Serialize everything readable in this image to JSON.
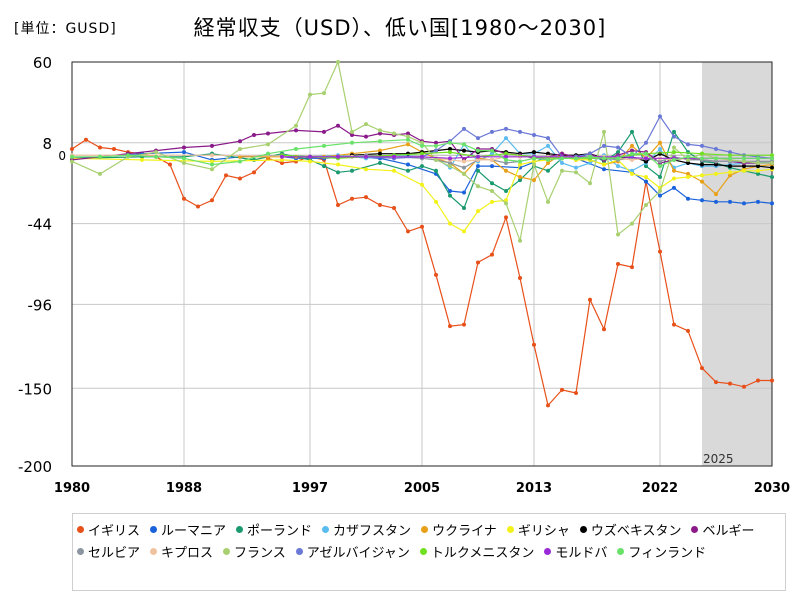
{
  "unit_label": "[単位：GUSD]",
  "chart_data": {
    "type": "line",
    "title": "経常収支（USD）、低い国[1980～2030]",
    "xlabel": "",
    "ylabel": "",
    "xlim": [
      1980,
      2030
    ],
    "ylim": [
      -200,
      60
    ],
    "x_ticks": [
      1980,
      1988,
      1997,
      2005,
      2013,
      2022,
      2030
    ],
    "y_ticks": [
      60,
      8,
      -44,
      -96,
      -150,
      -200
    ],
    "zero_label": "0",
    "forecast_region": {
      "from": 2025,
      "to": 2030,
      "label": "2025",
      "color": "#d9d9d9"
    },
    "legend_position": "bottom",
    "grid": true,
    "series": [
      {
        "name": "イギリス",
        "color": "#e8501a",
        "x": [
          1980,
          1981,
          1982,
          1983,
          1984,
          1985,
          1986,
          1987,
          1988,
          1989,
          1990,
          1991,
          1992,
          1993,
          1994,
          1995,
          1996,
          1997,
          1998,
          1999,
          2000,
          2001,
          2002,
          2003,
          2004,
          2005,
          2006,
          2007,
          2008,
          2009,
          2010,
          2011,
          2012,
          2013,
          2014,
          2015,
          2016,
          2017,
          2018,
          2019,
          2020,
          2021,
          2022,
          2023,
          2024,
          2025,
          2026,
          2027,
          2028,
          2029,
          2030
        ],
        "y": [
          4,
          10,
          5,
          4,
          2,
          1,
          -1,
          -6,
          -28,
          -33,
          -29,
          -13,
          -15,
          -11,
          -2,
          -5,
          -4,
          -1,
          -3,
          -32,
          -28,
          -27,
          -32,
          -34,
          -49,
          -46,
          -77,
          -110,
          -109,
          -69,
          -64,
          -40,
          -79,
          -122,
          -161,
          -151,
          -153,
          -93,
          -112,
          -70,
          -72,
          -17,
          -62,
          -109,
          -113,
          -137,
          -146,
          -147,
          -149,
          -145,
          -145
        ]
      },
      {
        "name": "ルーマニア",
        "color": "#1a62dc",
        "x": [
          1980,
          1982,
          1985,
          1988,
          1990,
          1992,
          1994,
          1996,
          1998,
          2000,
          2002,
          2004,
          2006,
          2007,
          2008,
          2009,
          2010,
          2012,
          2014,
          2016,
          2018,
          2020,
          2021,
          2022,
          2023,
          2024,
          2025,
          2026,
          2027,
          2028,
          2029,
          2030
        ],
        "y": [
          -2,
          -1,
          1,
          2,
          -3,
          -1,
          0,
          -2,
          -2,
          -1,
          -2,
          -6,
          -12,
          -23,
          -24,
          -7,
          -7,
          -8,
          -1,
          -2,
          -9,
          -11,
          -17,
          -26,
          -21,
          -28,
          -29,
          -30,
          -30,
          -31,
          -30,
          -31
        ]
      },
      {
        "name": "ポーランド",
        "color": "#1a9a6e",
        "x": [
          1980,
          1985,
          1988,
          1990,
          1993,
          1995,
          1997,
          1998,
          1999,
          2000,
          2002,
          2004,
          2005,
          2006,
          2007,
          2008,
          2009,
          2010,
          2011,
          2012,
          2013,
          2014,
          2015,
          2016,
          2017,
          2018,
          2019,
          2020,
          2021,
          2022,
          2023,
          2024,
          2025,
          2026,
          2027,
          2028,
          2029,
          2030
        ],
        "y": [
          -2,
          -1,
          -1,
          1,
          -3,
          1,
          -3,
          -7,
          -11,
          -10,
          -5,
          -10,
          -7,
          -10,
          -26,
          -34,
          -10,
          -18,
          -23,
          -16,
          -7,
          -10,
          -2,
          -2,
          1,
          -4,
          2,
          15,
          -7,
          -14,
          15,
          2,
          -4,
          -5,
          -8,
          -10,
          -12,
          -14
        ]
      },
      {
        "name": "カザフスタン",
        "color": "#5bbcf0",
        "x": [
          1995,
          1997,
          1999,
          2001,
          2003,
          2005,
          2006,
          2007,
          2008,
          2009,
          2010,
          2011,
          2012,
          2013,
          2014,
          2015,
          2016,
          2017,
          2018,
          2019,
          2020,
          2021,
          2022,
          2023,
          2024,
          2025,
          2026,
          2027,
          2028,
          2029,
          2030
        ],
        "y": [
          -1,
          -1,
          0,
          -2,
          0,
          -1,
          -2,
          -8,
          7,
          -4,
          1,
          11,
          1,
          1,
          6,
          -5,
          -8,
          -5,
          0,
          -7,
          -10,
          -5,
          4,
          -8,
          -5,
          -7,
          -7,
          -6,
          -5,
          -5,
          -4
        ]
      },
      {
        "name": "ウクライナ",
        "color": "#e8a017",
        "x": [
          1992,
          1994,
          1996,
          1998,
          2000,
          2002,
          2004,
          2005,
          2006,
          2007,
          2008,
          2009,
          2010,
          2011,
          2012,
          2013,
          2014,
          2015,
          2016,
          2017,
          2018,
          2019,
          2020,
          2021,
          2022,
          2023,
          2024,
          2025,
          2026,
          2027,
          2028,
          2029,
          2030
        ],
        "y": [
          -1,
          -1,
          -1,
          -1,
          1,
          3,
          7,
          2,
          -2,
          -5,
          -12,
          -2,
          -3,
          -10,
          -14,
          -16,
          -5,
          1,
          -3,
          -3,
          -6,
          -4,
          6,
          -2,
          8,
          -10,
          -12,
          -17,
          -25,
          -13,
          -9,
          -7,
          -6
        ]
      },
      {
        "name": "ギリシャ",
        "color": "#f2f21a",
        "x": [
          1980,
          1985,
          1990,
          1995,
          1997,
          1999,
          2001,
          2003,
          2005,
          2006,
          2007,
          2008,
          2009,
          2010,
          2011,
          2012,
          2013,
          2014,
          2015,
          2016,
          2017,
          2018,
          2019,
          2020,
          2021,
          2022,
          2023,
          2024,
          2025,
          2026,
          2027,
          2028,
          2029,
          2030
        ],
        "y": [
          -2,
          -3,
          -4,
          -3,
          -4,
          -6,
          -9,
          -10,
          -19,
          -30,
          -44,
          -49,
          -36,
          -30,
          -29,
          -6,
          -4,
          -3,
          -1,
          -3,
          -3,
          -6,
          -3,
          -12,
          -14,
          -21,
          -15,
          -14,
          -13,
          -12,
          -11,
          -10,
          -10,
          -9
        ]
      },
      {
        "name": "ウズベキスタン",
        "color": "#000000",
        "x": [
          2000,
          2002,
          2004,
          2005,
          2006,
          2007,
          2008,
          2009,
          2010,
          2011,
          2012,
          2013,
          2014,
          2015,
          2016,
          2017,
          2018,
          2019,
          2020,
          2021,
          2022,
          2023,
          2024,
          2025,
          2026,
          2027,
          2028,
          2029,
          2030
        ],
        "y": [
          0,
          1,
          1,
          2,
          3,
          4,
          3,
          2,
          3,
          2,
          1,
          2,
          1,
          0,
          0,
          1,
          -2,
          -2,
          -1,
          -4,
          1,
          -3,
          -5,
          -6,
          -6,
          -7,
          -7,
          -7,
          -8
        ]
      },
      {
        "name": "ベルギー",
        "color": "#8a1a8a",
        "x": [
          1980,
          1982,
          1984,
          1986,
          1988,
          1990,
          1992,
          1993,
          1994,
          1996,
          1998,
          1999,
          2000,
          2001,
          2002,
          2003,
          2004,
          2005,
          2006,
          2007,
          2008,
          2009,
          2010,
          2011,
          2012,
          2013,
          2014,
          2015,
          2016,
          2017,
          2018,
          2019,
          2020,
          2021,
          2022,
          2023,
          2024,
          2025,
          2026,
          2027,
          2028,
          2029,
          2030
        ],
        "y": [
          -3,
          -1,
          1,
          3,
          5,
          6,
          9,
          13,
          14,
          16,
          15,
          19,
          13,
          12,
          14,
          13,
          14,
          9,
          8,
          9,
          -3,
          4,
          4,
          1,
          0,
          -2,
          -1,
          1,
          -1,
          1,
          -3,
          0,
          3,
          2,
          -5,
          -3,
          -2,
          -3,
          -4,
          -4,
          -5,
          -5,
          -5
        ]
      },
      {
        "name": "セルビア",
        "color": "#8c96a0",
        "x": [
          1997,
          1999,
          2001,
          2003,
          2005,
          2006,
          2007,
          2008,
          2009,
          2010,
          2011,
          2012,
          2013,
          2014,
          2015,
          2016,
          2017,
          2018,
          2019,
          2020,
          2021,
          2022,
          2023,
          2024,
          2025,
          2026,
          2027,
          2028,
          2029,
          2030
        ],
        "y": [
          -1,
          -1,
          0,
          -1,
          -2,
          -3,
          -5,
          -8,
          -3,
          -3,
          -5,
          -4,
          -2,
          -2,
          -1,
          -1,
          -2,
          -2,
          -3,
          -2,
          -2,
          -4,
          -1,
          -3,
          -3,
          -4,
          -4,
          -4,
          -4,
          -4
        ]
      },
      {
        "name": "キプロス",
        "color": "#f0c3a0",
        "x": [
          1980,
          1990,
          2000,
          2005,
          2006,
          2007,
          2008,
          2009,
          2010,
          2011,
          2012,
          2013,
          2014,
          2015,
          2016,
          2017,
          2018,
          2019,
          2020,
          2021,
          2022,
          2023,
          2024,
          2025,
          2026,
          2027,
          2028,
          2029,
          2030
        ],
        "y": [
          0,
          0,
          -1,
          -1,
          -2,
          -3,
          -4,
          -3,
          -3,
          -1,
          -1,
          -1,
          -1,
          -1,
          -1,
          -1,
          -1,
          -2,
          -3,
          -2,
          -2,
          -3,
          -2,
          -2,
          -2,
          -2,
          -2,
          -2,
          -2
        ]
      },
      {
        "name": "フランス",
        "color": "#a8d070",
        "x": [
          1980,
          1982,
          1984,
          1986,
          1988,
          1990,
          1992,
          1994,
          1996,
          1997,
          1998,
          1999,
          2000,
          2001,
          2002,
          2003,
          2004,
          2005,
          2006,
          2007,
          2008,
          2009,
          2010,
          2011,
          2012,
          2013,
          2014,
          2015,
          2016,
          2017,
          2018,
          2019,
          2020,
          2021,
          2022,
          2023,
          2024,
          2025,
          2026,
          2027,
          2028,
          2029,
          2030
        ],
        "y": [
          -4,
          -12,
          -1,
          2,
          -5,
          -9,
          4,
          7,
          19,
          39,
          40,
          60,
          15,
          20,
          16,
          14,
          12,
          8,
          -3,
          -7,
          -12,
          -20,
          -23,
          -31,
          -55,
          -6,
          -30,
          -10,
          -11,
          -18,
          15,
          -51,
          -44,
          -32,
          -23,
          5,
          -3,
          1,
          -2,
          -3,
          -4,
          -5,
          -5
        ]
      },
      {
        "name": "アゼルバイジャン",
        "color": "#6a78d6",
        "x": [
          1995,
          1997,
          1999,
          2001,
          2003,
          2005,
          2006,
          2007,
          2008,
          2009,
          2010,
          2011,
          2012,
          2013,
          2014,
          2015,
          2016,
          2017,
          2018,
          2019,
          2020,
          2021,
          2022,
          2023,
          2024,
          2025,
          2026,
          2027,
          2028,
          2029,
          2030
        ],
        "y": [
          0,
          -1,
          -1,
          -1,
          -2,
          -1,
          3,
          9,
          17,
          11,
          15,
          17,
          15,
          13,
          11,
          -1,
          -1,
          1,
          6,
          5,
          -1,
          8,
          25,
          12,
          7,
          6,
          4,
          2,
          0,
          -1,
          -2
        ]
      },
      {
        "name": "トルクメニスタン",
        "color": "#70e020",
        "x": [
          1995,
          1997,
          1999,
          2001,
          2003,
          2005,
          2007,
          2009,
          2011,
          2013,
          2015,
          2017,
          2019,
          2021,
          2023,
          2025,
          2027,
          2030
        ],
        "y": [
          0,
          -1,
          -2,
          -1,
          0,
          1,
          2,
          -1,
          1,
          -1,
          -2,
          -2,
          -1,
          1,
          2,
          1,
          0,
          0
        ]
      },
      {
        "name": "モルドバ",
        "color": "#9a2ad8",
        "x": [
          1995,
          1997,
          1999,
          2001,
          2003,
          2005,
          2007,
          2009,
          2011,
          2013,
          2015,
          2017,
          2019,
          2021,
          2023,
          2025,
          2027,
          2030
        ],
        "y": [
          -1,
          -1,
          -1,
          -1,
          -1,
          -1,
          -2,
          -1,
          -1,
          -1,
          -1,
          -1,
          -1,
          -2,
          -2,
          -2,
          -2,
          -2
        ]
      },
      {
        "name": "フィンランド",
        "color": "#6ae26a",
        "x": [
          1980,
          1982,
          1984,
          1986,
          1988,
          1990,
          1992,
          1994,
          1996,
          1998,
          2000,
          2002,
          2004,
          2005,
          2006,
          2007,
          2008,
          2009,
          2010,
          2011,
          2012,
          2013,
          2014,
          2015,
          2016,
          2017,
          2018,
          2019,
          2020,
          2021,
          2022,
          2023,
          2024,
          2025,
          2026,
          2027,
          2028,
          2029,
          2030
        ],
        "y": [
          -1,
          -1,
          0,
          -1,
          -2,
          -6,
          -4,
          1,
          4,
          6,
          8,
          9,
          10,
          6,
          6,
          8,
          7,
          3,
          3,
          -3,
          -4,
          -2,
          -3,
          -2,
          -2,
          -1,
          -2,
          -2,
          1,
          1,
          -7,
          -3,
          -1,
          -2,
          -2,
          -2,
          -2,
          -2,
          -2
        ]
      }
    ]
  }
}
